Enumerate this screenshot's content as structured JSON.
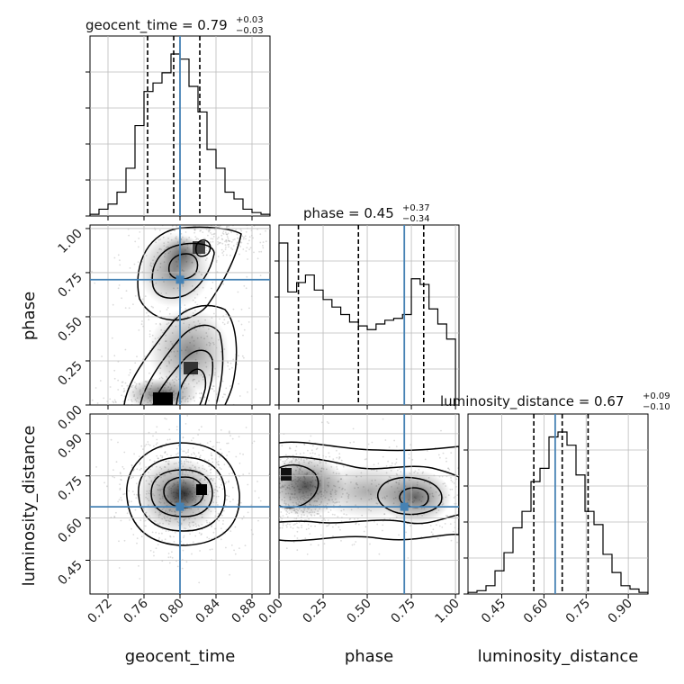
{
  "chart_data": {
    "type": "corner",
    "parameters": [
      "geocent_time",
      "phase",
      "luminosity_distance"
    ],
    "ranges": {
      "geocent_time": [
        0.7,
        0.9
      ],
      "phase": [
        0.0,
        1.02
      ],
      "luminosity_distance": [
        0.33,
        0.97
      ]
    },
    "ticks": {
      "geocent_time": {
        "values": [
          0.72,
          0.76,
          0.8,
          0.84,
          0.88
        ],
        "labels": [
          "0.72",
          "0.76",
          "0.80",
          "0.84",
          "0.88"
        ]
      },
      "phase": {
        "values": [
          0.0,
          0.25,
          0.5,
          0.75,
          1.0
        ],
        "labels": [
          "0.00",
          "0.25",
          "0.50",
          "0.75",
          "1.00"
        ]
      },
      "luminosity_distance": {
        "values": [
          0.45,
          0.6,
          0.75,
          0.9
        ],
        "labels": [
          "0.45",
          "0.60",
          "0.75",
          "0.90"
        ]
      }
    },
    "axis_labels": {
      "geocent_time": "geocent_time",
      "phase": "phase",
      "luminosity_distance": "luminosity_distance"
    },
    "truths": {
      "geocent_time": 0.8,
      "phase": 0.71,
      "luminosity_distance": 0.64
    },
    "quantile_lines": {
      "geocent_time": [
        0.764,
        0.793,
        0.822
      ],
      "phase": [
        0.11,
        0.45,
        0.82
      ],
      "luminosity_distance": [
        0.564,
        0.665,
        0.757
      ]
    },
    "titles": {
      "geocent_time": {
        "text": "geocent_time = 0.79",
        "plus": "+0.03",
        "minus": "−0.03"
      },
      "phase": {
        "text": "phase = 0.45",
        "plus": "+0.37",
        "minus": "−0.34"
      },
      "luminosity_distance": {
        "text": "luminosity_distance = 0.67",
        "plus": "+0.09",
        "minus": "−0.10"
      }
    },
    "histograms": {
      "geocent_time": {
        "bin_edges": [
          0.7,
          0.71,
          0.72,
          0.73,
          0.74,
          0.75,
          0.76,
          0.77,
          0.78,
          0.79,
          0.8,
          0.81,
          0.82,
          0.83,
          0.84,
          0.85,
          0.86,
          0.87,
          0.88,
          0.89,
          0.9
        ],
        "counts": [
          0.01,
          0.04,
          0.07,
          0.14,
          0.28,
          0.53,
          0.73,
          0.78,
          0.84,
          0.95,
          0.92,
          0.76,
          0.61,
          0.39,
          0.28,
          0.14,
          0.1,
          0.04,
          0.02,
          0.01
        ]
      },
      "phase": {
        "bin_edges": [
          0.0,
          0.05,
          0.1,
          0.15,
          0.2,
          0.25,
          0.3,
          0.35,
          0.4,
          0.45,
          0.5,
          0.55,
          0.6,
          0.65,
          0.7,
          0.75,
          0.8,
          0.85,
          0.9,
          0.95,
          1.0
        ],
        "counts": [
          0.86,
          0.6,
          0.65,
          0.69,
          0.61,
          0.56,
          0.52,
          0.48,
          0.44,
          0.42,
          0.4,
          0.43,
          0.45,
          0.46,
          0.48,
          0.67,
          0.64,
          0.51,
          0.43,
          0.35
        ]
      },
      "luminosity_distance": {
        "bin_edges": [
          0.33,
          0.362,
          0.394,
          0.426,
          0.458,
          0.49,
          0.522,
          0.554,
          0.586,
          0.618,
          0.65,
          0.682,
          0.714,
          0.746,
          0.778,
          0.81,
          0.842,
          0.874,
          0.906,
          0.938,
          0.97
        ],
        "counts": [
          0.01,
          0.02,
          0.05,
          0.14,
          0.25,
          0.4,
          0.5,
          0.68,
          0.76,
          0.95,
          0.98,
          0.9,
          0.72,
          0.5,
          0.42,
          0.24,
          0.13,
          0.05,
          0.03,
          0.01
        ]
      }
    },
    "grid": true,
    "line_color": "#000000",
    "truth_color": "#4682b4"
  }
}
